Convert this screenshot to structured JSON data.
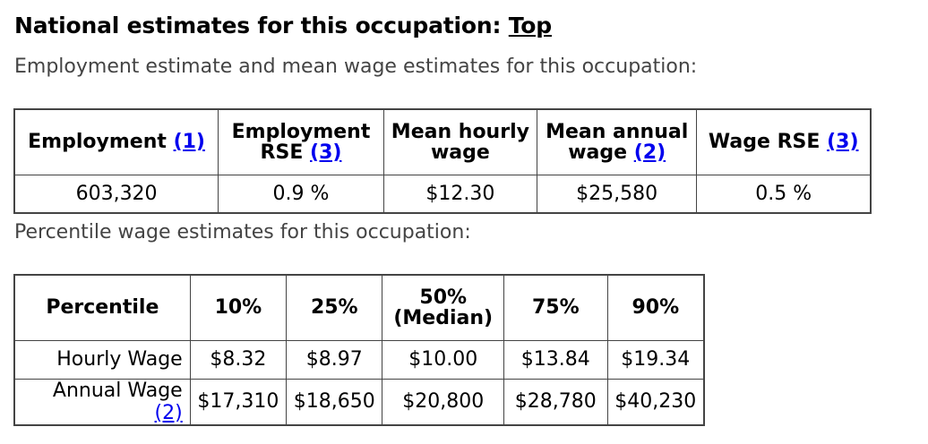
{
  "heading": {
    "text": "National estimates for this occupation:",
    "link": "Top"
  },
  "employment_intro": "Employment estimate and mean wage estimates for this occupation:",
  "employment_table": {
    "headers": [
      {
        "label": "Employment",
        "ref": "(1)"
      },
      {
        "label": "Employment RSE",
        "ref": "(3)"
      },
      {
        "label": "Mean hourly wage",
        "ref": ""
      },
      {
        "label": "Mean annual wage",
        "ref": "(2)"
      },
      {
        "label": "Wage RSE",
        "ref": "(3)"
      }
    ],
    "values": [
      "603,320",
      "0.9 %",
      "$12.30",
      "$25,580",
      "0.5 %"
    ]
  },
  "percentile_intro": "Percentile wage estimates for this occupation:",
  "percentile_table": {
    "headers": [
      "Percentile",
      "10%",
      "25%",
      "50%",
      "(Median)",
      "75%",
      "90%"
    ],
    "rows": [
      {
        "label": "Hourly Wage",
        "ref": "",
        "values": [
          "$8.32",
          "$8.97",
          "$10.00",
          "$13.84",
          "$19.34"
        ]
      },
      {
        "label": "Annual Wage",
        "ref": "(2)",
        "values": [
          "$17,310",
          "$18,650",
          "$20,800",
          "$28,780",
          "$40,230"
        ]
      }
    ]
  }
}
